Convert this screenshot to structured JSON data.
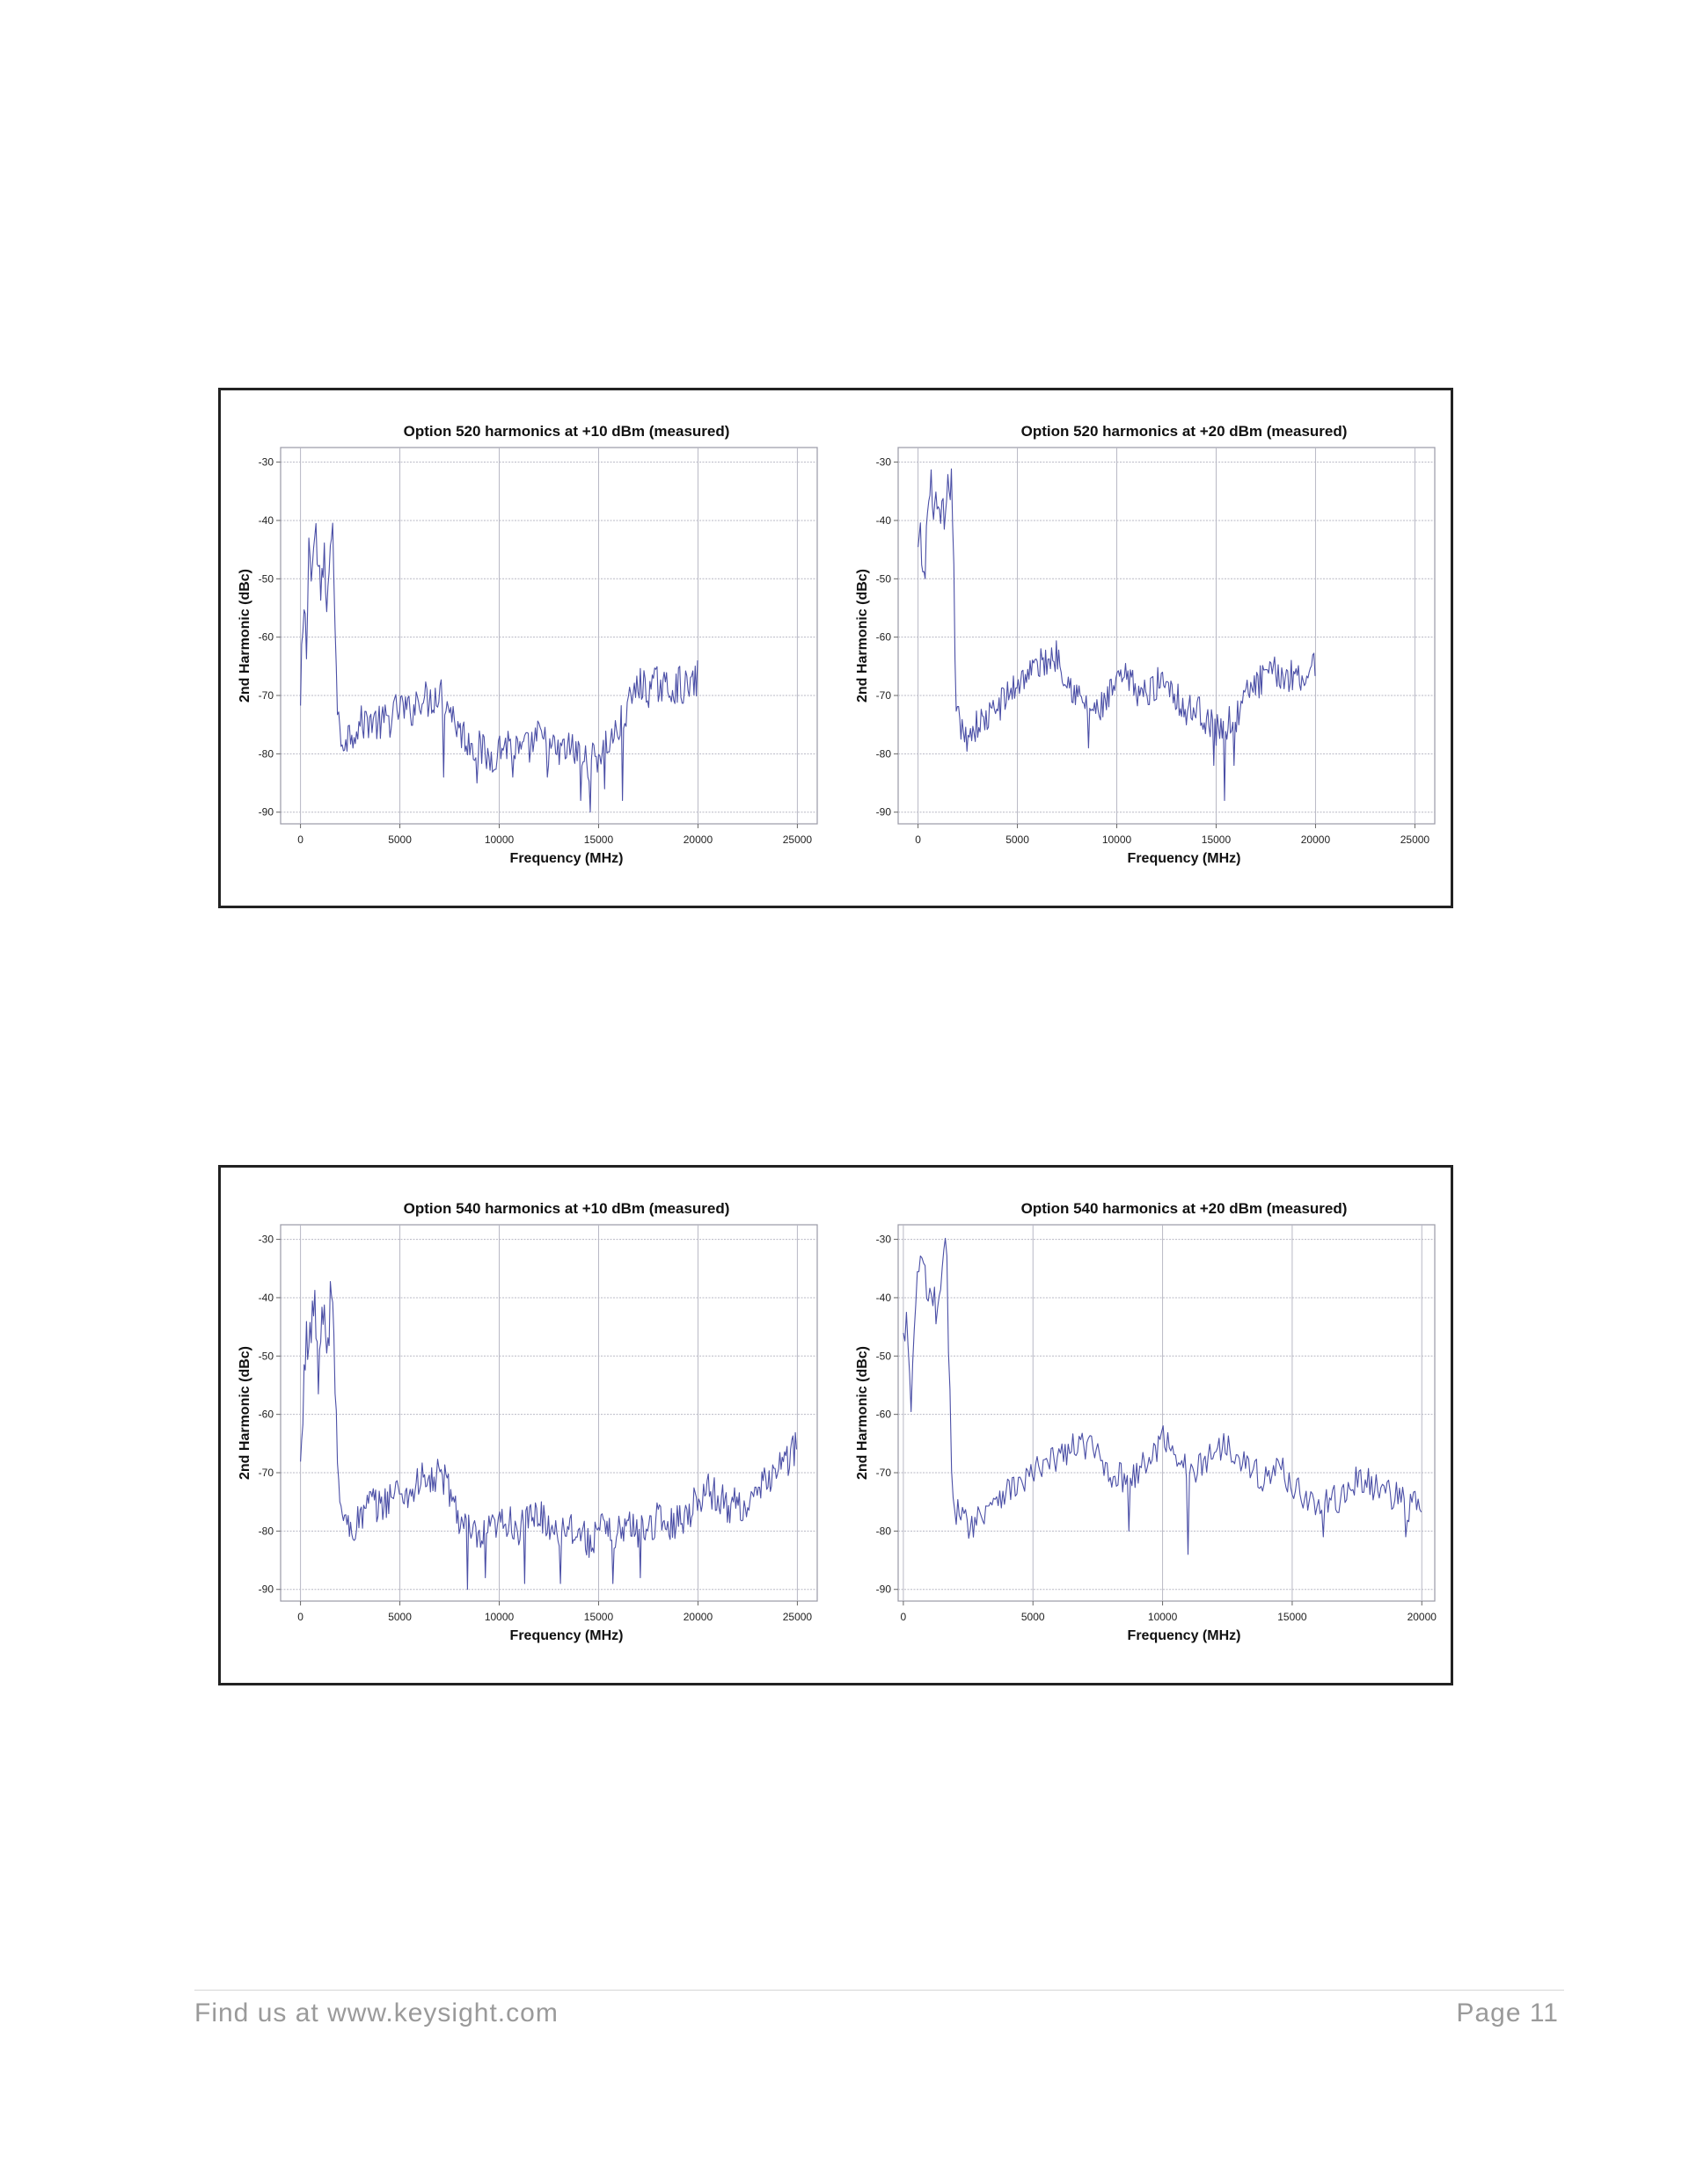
{
  "footer": {
    "left": "Find us at www.keysight.com",
    "right": "Page 11"
  },
  "colors": {
    "trace": "#4b4fa6",
    "grid": "#b8b8c4",
    "frame": "#222222"
  },
  "chart_data": [
    {
      "type": "line",
      "title": "Option 520 harmonics at +10 dBm (measured)",
      "xlabel": "Frequency (MHz)",
      "ylabel": "2nd Harmonic (dBc)",
      "xlim": [
        -1000,
        26000
      ],
      "ylim": [
        -92,
        -27.5
      ],
      "xticks": [
        0,
        5000,
        10000,
        15000,
        20000,
        25000
      ],
      "yticks": [
        -30,
        -40,
        -50,
        -60,
        -70,
        -80,
        -90
      ],
      "grid": true,
      "series": [
        {
          "keypoints": [
            [
              0,
              -73
            ],
            [
              150,
              -56
            ],
            [
              300,
              -62
            ],
            [
              450,
              -42
            ],
            [
              600,
              -48
            ],
            [
              750,
              -41
            ],
            [
              900,
              -49
            ],
            [
              1050,
              -55
            ],
            [
              1200,
              -45
            ],
            [
              1350,
              -60
            ],
            [
              1500,
              -40
            ],
            [
              1650,
              -43
            ],
            [
              1800,
              -68
            ],
            [
              2000,
              -78
            ],
            [
              2300,
              -77
            ],
            [
              2600,
              -76
            ],
            [
              3000,
              -75
            ],
            [
              3500,
              -74
            ],
            [
              4000,
              -75
            ],
            [
              4500,
              -74
            ],
            [
              5000,
              -72
            ],
            [
              5500,
              -73
            ],
            [
              6000,
              -70
            ],
            [
              6500,
              -71
            ],
            [
              7000,
              -69
            ],
            [
              7500,
              -72
            ],
            [
              8000,
              -76
            ],
            [
              8500,
              -78
            ],
            [
              9000,
              -79
            ],
            [
              9500,
              -81
            ],
            [
              10000,
              -79
            ],
            [
              10500,
              -78
            ],
            [
              11000,
              -80
            ],
            [
              11500,
              -79
            ],
            [
              12000,
              -77
            ],
            [
              12500,
              -79
            ],
            [
              13000,
              -80
            ],
            [
              13500,
              -79
            ],
            [
              14000,
              -80
            ],
            [
              14500,
              -82
            ],
            [
              15000,
              -80
            ],
            [
              15500,
              -78
            ],
            [
              16000,
              -76
            ],
            [
              16500,
              -72
            ],
            [
              17000,
              -68
            ],
            [
              17500,
              -69
            ],
            [
              18000,
              -68
            ],
            [
              18500,
              -69
            ],
            [
              19000,
              -68
            ],
            [
              19500,
              -69
            ],
            [
              20000,
              -67
            ]
          ],
          "jitter": 3.2,
          "extreme_dips": [
            [
              7200,
              -84
            ],
            [
              8900,
              -85
            ],
            [
              10700,
              -84
            ],
            [
              12400,
              -84
            ],
            [
              14100,
              -88
            ],
            [
              14600,
              -90
            ],
            [
              15300,
              -86
            ],
            [
              16200,
              -88
            ]
          ]
        }
      ]
    },
    {
      "type": "line",
      "title": "Option 520 harmonics at +20 dBm (measured)",
      "xlabel": "Frequency (MHz)",
      "ylabel": "2nd Harmonic (dBc)",
      "xlim": [
        -1000,
        26000
      ],
      "ylim": [
        -92,
        -27.5
      ],
      "xticks": [
        0,
        5000,
        10000,
        15000,
        20000,
        25000
      ],
      "yticks": [
        -30,
        -40,
        -50,
        -60,
        -70,
        -80,
        -90
      ],
      "grid": true,
      "series": [
        {
          "keypoints": [
            [
              0,
              -46
            ],
            [
              150,
              -44
            ],
            [
              300,
              -52
            ],
            [
              450,
              -40
            ],
            [
              600,
              -36
            ],
            [
              750,
              -35
            ],
            [
              900,
              -38
            ],
            [
              1050,
              -43
            ],
            [
              1200,
              -38
            ],
            [
              1350,
              -44
            ],
            [
              1500,
              -36
            ],
            [
              1650,
              -32
            ],
            [
              1750,
              -40
            ],
            [
              1900,
              -70
            ],
            [
              2100,
              -76
            ],
            [
              2400,
              -77
            ],
            [
              2700,
              -76
            ],
            [
              3000,
              -75
            ],
            [
              3500,
              -74
            ],
            [
              4000,
              -72
            ],
            [
              4500,
              -70
            ],
            [
              5000,
              -68
            ],
            [
              5500,
              -66
            ],
            [
              6000,
              -65
            ],
            [
              6500,
              -64
            ],
            [
              7000,
              -63
            ],
            [
              7500,
              -67
            ],
            [
              8000,
              -70
            ],
            [
              8500,
              -72
            ],
            [
              9000,
              -73
            ],
            [
              9500,
              -71
            ],
            [
              10000,
              -68
            ],
            [
              10500,
              -67
            ],
            [
              11000,
              -69
            ],
            [
              11500,
              -70
            ],
            [
              12000,
              -68
            ],
            [
              12500,
              -67
            ],
            [
              13000,
              -70
            ],
            [
              13500,
              -73
            ],
            [
              14000,
              -72
            ],
            [
              14500,
              -74
            ],
            [
              15000,
              -76
            ],
            [
              15500,
              -75
            ],
            [
              16000,
              -74
            ],
            [
              16500,
              -70
            ],
            [
              17000,
              -68
            ],
            [
              17500,
              -67
            ],
            [
              18000,
              -66
            ],
            [
              18500,
              -67
            ],
            [
              19000,
              -66
            ],
            [
              19500,
              -67
            ],
            [
              20000,
              -64
            ]
          ],
          "jitter": 2.8,
          "extreme_dips": [
            [
              8600,
              -79
            ],
            [
              14900,
              -82
            ],
            [
              15400,
              -88
            ],
            [
              15900,
              -82
            ]
          ]
        }
      ]
    },
    {
      "type": "line",
      "title": "Option 540 harmonics at +10 dBm (measured)",
      "xlabel": "Frequency (MHz)",
      "ylabel": "2nd Harmonic (dBc)",
      "xlim": [
        -1000,
        26000
      ],
      "ylim": [
        -92,
        -27.5
      ],
      "xticks": [
        0,
        5000,
        10000,
        15000,
        20000,
        25000
      ],
      "yticks": [
        -30,
        -40,
        -50,
        -60,
        -70,
        -80,
        -90
      ],
      "grid": true,
      "series": [
        {
          "keypoints": [
            [
              0,
              -70
            ],
            [
              150,
              -58
            ],
            [
              300,
              -43
            ],
            [
              450,
              -50
            ],
            [
              600,
              -41
            ],
            [
              750,
              -44
            ],
            [
              900,
              -52
            ],
            [
              1050,
              -46
            ],
            [
              1200,
              -43
            ],
            [
              1350,
              -53
            ],
            [
              1500,
              -40
            ],
            [
              1650,
              -41
            ],
            [
              1800,
              -62
            ],
            [
              1950,
              -74
            ],
            [
              2200,
              -78
            ],
            [
              2500,
              -80
            ],
            [
              3000,
              -78
            ],
            [
              3500,
              -75
            ],
            [
              4000,
              -76
            ],
            [
              4500,
              -74
            ],
            [
              5000,
              -73
            ],
            [
              5500,
              -74
            ],
            [
              6000,
              -71
            ],
            [
              6500,
              -72
            ],
            [
              7000,
              -70
            ],
            [
              7500,
              -73
            ],
            [
              8000,
              -78
            ],
            [
              8500,
              -80
            ],
            [
              9000,
              -82
            ],
            [
              9500,
              -80
            ],
            [
              10000,
              -79
            ],
            [
              10500,
              -78
            ],
            [
              11000,
              -80
            ],
            [
              11500,
              -78
            ],
            [
              12000,
              -77
            ],
            [
              12500,
              -79
            ],
            [
              13000,
              -80
            ],
            [
              13500,
              -79
            ],
            [
              14000,
              -80
            ],
            [
              14500,
              -82
            ],
            [
              15000,
              -80
            ],
            [
              15500,
              -80
            ],
            [
              16000,
              -80
            ],
            [
              16500,
              -79
            ],
            [
              17000,
              -80
            ],
            [
              17500,
              -79
            ],
            [
              18000,
              -78
            ],
            [
              18500,
              -79
            ],
            [
              19000,
              -78
            ],
            [
              19500,
              -77
            ],
            [
              20000,
              -74
            ],
            [
              20500,
              -73
            ],
            [
              21000,
              -74
            ],
            [
              21500,
              -76
            ],
            [
              22000,
              -75
            ],
            [
              22500,
              -76
            ],
            [
              23000,
              -74
            ],
            [
              23500,
              -71
            ],
            [
              24000,
              -69
            ],
            [
              24500,
              -68
            ],
            [
              25000,
              -65
            ]
          ],
          "jitter": 3.0,
          "extreme_dips": [
            [
              8400,
              -90
            ],
            [
              9300,
              -88
            ],
            [
              11300,
              -89
            ],
            [
              13100,
              -89
            ],
            [
              15700,
              -89
            ],
            [
              17100,
              -88
            ]
          ]
        }
      ]
    },
    {
      "type": "line",
      "title": "Option 540 harmonics at +20 dBm (measured)",
      "xlabel": "Frequency (MHz)",
      "ylabel": "2nd Harmonic (dBc)",
      "xlim": [
        -200,
        20500
      ],
      "ylim": [
        -92,
        -27.5
      ],
      "xticks": [
        0,
        5000,
        10000,
        15000,
        20000
      ],
      "yticks": [
        -30,
        -40,
        -50,
        -60,
        -70,
        -80,
        -90
      ],
      "grid": true,
      "series": [
        {
          "keypoints": [
            [
              0,
              -48
            ],
            [
              150,
              -44
            ],
            [
              300,
              -63
            ],
            [
              450,
              -40
            ],
            [
              600,
              -36
            ],
            [
              750,
              -35
            ],
            [
              900,
              -38
            ],
            [
              1050,
              -43
            ],
            [
              1200,
              -40
            ],
            [
              1350,
              -44
            ],
            [
              1500,
              -36
            ],
            [
              1600,
              -32
            ],
            [
              1700,
              -38
            ],
            [
              1850,
              -68
            ],
            [
              2000,
              -76
            ],
            [
              2300,
              -78
            ],
            [
              2600,
              -79
            ],
            [
              3000,
              -77
            ],
            [
              3500,
              -74
            ],
            [
              4000,
              -73
            ],
            [
              4500,
              -72
            ],
            [
              5000,
              -70
            ],
            [
              5500,
              -69
            ],
            [
              6000,
              -67
            ],
            [
              6500,
              -66
            ],
            [
              7000,
              -65
            ],
            [
              7500,
              -67
            ],
            [
              8000,
              -70
            ],
            [
              8500,
              -71
            ],
            [
              9000,
              -70
            ],
            [
              9500,
              -68
            ],
            [
              10000,
              -64
            ],
            [
              10500,
              -66
            ],
            [
              11000,
              -70
            ],
            [
              11500,
              -69
            ],
            [
              12000,
              -66
            ],
            [
              12500,
              -65
            ],
            [
              13000,
              -67
            ],
            [
              13500,
              -70
            ],
            [
              14000,
              -71
            ],
            [
              14500,
              -69
            ],
            [
              15000,
              -72
            ],
            [
              15500,
              -74
            ],
            [
              16000,
              -76
            ],
            [
              16500,
              -75
            ],
            [
              17000,
              -74
            ],
            [
              17500,
              -71
            ],
            [
              18000,
              -72
            ],
            [
              18500,
              -73
            ],
            [
              19000,
              -74
            ],
            [
              19500,
              -76
            ],
            [
              20000,
              -75
            ]
          ],
          "jitter": 2.6,
          "extreme_dips": [
            [
              8700,
              -80
            ],
            [
              11000,
              -84
            ],
            [
              16200,
              -81
            ],
            [
              19400,
              -81
            ]
          ]
        }
      ]
    }
  ]
}
